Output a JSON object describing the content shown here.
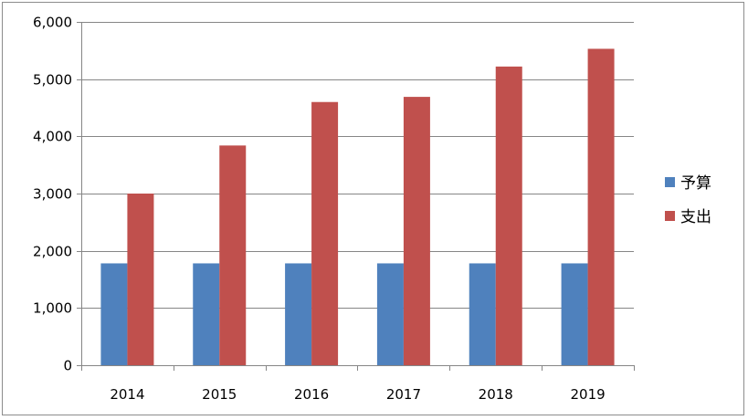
{
  "chart_data": {
    "type": "bar",
    "categories": [
      "2014",
      "2015",
      "2016",
      "2017",
      "2018",
      "2019"
    ],
    "series": [
      {
        "name": "予算",
        "color": "#4f81bd",
        "values": [
          1780,
          1780,
          1780,
          1780,
          1780,
          1780
        ]
      },
      {
        "name": "支出",
        "color": "#c0504d",
        "values": [
          3000,
          3840,
          4600,
          4690,
          5220,
          5530
        ]
      }
    ],
    "ylim": [
      0,
      6000
    ],
    "yticks": [
      "0",
      "1,000",
      "2,000",
      "3,000",
      "4,000",
      "5,000",
      "6,000"
    ],
    "ytick_values": [
      0,
      1000,
      2000,
      3000,
      4000,
      5000,
      6000
    ],
    "grid": true,
    "legend_position": "right",
    "title": "",
    "xlabel": "",
    "ylabel": ""
  }
}
